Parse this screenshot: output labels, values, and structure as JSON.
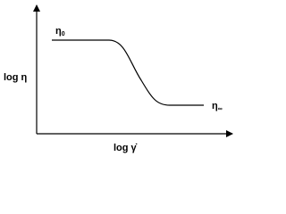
{
  "axes": {
    "y_label": "log η",
    "x_label": "log γ̇"
  },
  "annotations": {
    "zero_shear": {
      "symbol": "η",
      "subscript": "0"
    },
    "infinite_shear": {
      "symbol": "η",
      "subscript": "∞"
    }
  }
}
